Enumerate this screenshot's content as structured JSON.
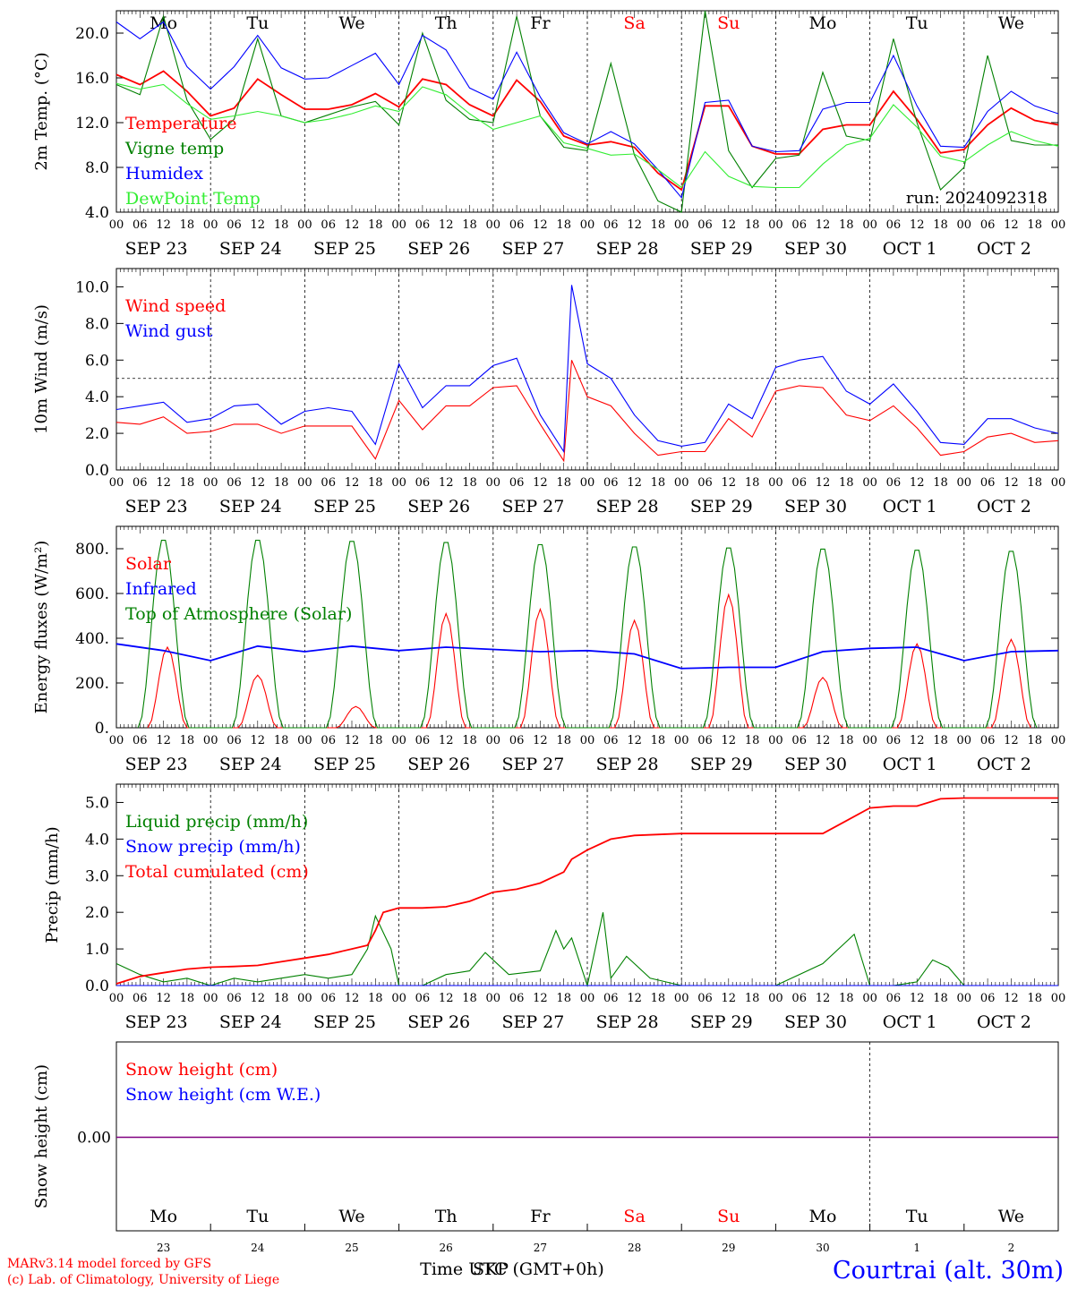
{
  "colors": {
    "red": "#ff0000",
    "green": "#008000",
    "blue": "#0000ff",
    "lime": "#33ee33",
    "purple": "#800080",
    "black": "#000000",
    "weekend": "#ff0000"
  },
  "x_axis": {
    "hour_ticks": [
      "00",
      "06",
      "12",
      "18"
    ],
    "final_tick": "00",
    "dates": [
      "SEP 23",
      "SEP 24",
      "SEP 25",
      "SEP 26",
      "SEP 27",
      "SEP 28",
      "SEP 29",
      "SEP 30",
      "OCT  1",
      "OCT  2"
    ],
    "weekdays": [
      "Mo",
      "Tu",
      "We",
      "Th",
      "Fr",
      "Sa",
      "Su",
      "Mo",
      "Tu",
      "We"
    ],
    "weekend_days": [
      "Sa",
      "Su"
    ],
    "day_numbers": [
      "23",
      "24",
      "25",
      "26",
      "27",
      "28",
      "29",
      "30",
      "1",
      "2"
    ],
    "time_label": "Time UTC (GMT+0h)",
    "time_label_overlay": "SKP"
  },
  "run_label": "run: 2024092318",
  "footer": {
    "model": "MARv3.14 model forced by GFS",
    "lab": "(c) Lab. of Climatology, University of Liege",
    "station": "Courtrai (alt. 30m)"
  },
  "chart_data": [
    {
      "type": "line",
      "id": "temp",
      "ylabel": "2m Temp. (°C)",
      "ylim": [
        4,
        22
      ],
      "yticks": [
        "4.0",
        "8.0",
        "12.0",
        "16.0",
        "20.0"
      ],
      "ytick_values": [
        4,
        8,
        12,
        16,
        20
      ],
      "series": [
        {
          "name": "Temperature",
          "color": "red",
          "x": [
            0,
            6,
            12,
            18,
            24,
            30,
            36,
            42,
            48,
            54,
            60,
            66,
            72,
            78,
            84,
            90,
            96,
            102,
            108,
            114,
            120,
            126,
            132,
            138,
            144,
            150,
            156,
            162,
            168,
            174,
            180,
            186,
            192,
            198,
            204,
            210,
            216,
            222,
            228,
            234,
            240
          ],
          "y": [
            16.3,
            15.4,
            16.6,
            14.8,
            12.6,
            13.3,
            15.9,
            14.5,
            13.2,
            13.2,
            13.6,
            14.6,
            13.4,
            15.9,
            15.4,
            13.6,
            12.6,
            15.8,
            13.9,
            10.8,
            10.0,
            10.3,
            9.8,
            7.5,
            6.0,
            13.5,
            13.5,
            9.9,
            9.2,
            9.2,
            11.4,
            11.8,
            11.8,
            14.8,
            12.3,
            9.3,
            9.6,
            11.8,
            13.3,
            12.2,
            11.8
          ]
        },
        {
          "name": "Vigne temp",
          "color": "green",
          "x": [
            0,
            6,
            12,
            18,
            24,
            30,
            36,
            42,
            48,
            54,
            60,
            66,
            72,
            78,
            84,
            90,
            96,
            102,
            108,
            114,
            120,
            126,
            132,
            138,
            144,
            150,
            156,
            162,
            168,
            174,
            180,
            186,
            192,
            198,
            204,
            210,
            216,
            222,
            228,
            234,
            240
          ],
          "y": [
            15.4,
            14.5,
            21.5,
            14.0,
            10.5,
            12.3,
            19.5,
            12.6,
            12.0,
            12.7,
            13.4,
            13.9,
            11.8,
            20.0,
            14.0,
            12.3,
            12.0,
            21.5,
            12.6,
            9.8,
            9.5,
            17.3,
            9.1,
            5.0,
            4.0,
            22.0,
            9.5,
            6.2,
            8.8,
            9.1,
            16.5,
            10.8,
            10.4,
            19.5,
            12.0,
            6.0,
            8.0,
            18.0,
            10.4,
            10.0,
            10.0
          ]
        },
        {
          "name": "Humidex",
          "color": "blue",
          "x": [
            0,
            6,
            12,
            18,
            24,
            30,
            36,
            42,
            48,
            54,
            60,
            66,
            72,
            78,
            84,
            90,
            96,
            102,
            108,
            114,
            120,
            126,
            132,
            138,
            144,
            150,
            156,
            162,
            168,
            174,
            180,
            186,
            192,
            198,
            204,
            210,
            216,
            222,
            228,
            234,
            240
          ],
          "y": [
            21.0,
            19.5,
            21.0,
            17.0,
            15.0,
            17.0,
            19.8,
            16.9,
            15.9,
            16.0,
            17.1,
            18.2,
            15.4,
            19.8,
            18.5,
            15.1,
            14.1,
            18.3,
            14.3,
            11.1,
            10.1,
            11.2,
            10.1,
            7.8,
            5.3,
            13.8,
            14.0,
            9.9,
            9.4,
            9.5,
            13.2,
            13.8,
            13.8,
            18.0,
            13.5,
            9.9,
            9.8,
            13.0,
            14.8,
            13.5,
            12.8
          ]
        },
        {
          "name": "DewPoint Temp",
          "color": "lime",
          "x": [
            0,
            6,
            12,
            18,
            24,
            30,
            36,
            42,
            48,
            54,
            60,
            66,
            72,
            78,
            84,
            90,
            96,
            102,
            108,
            114,
            120,
            126,
            132,
            138,
            144,
            150,
            156,
            162,
            168,
            174,
            180,
            186,
            192,
            198,
            204,
            210,
            216,
            222,
            228,
            234,
            240
          ],
          "y": [
            15.5,
            15.0,
            15.4,
            13.7,
            12.3,
            12.6,
            13.0,
            12.6,
            12.0,
            12.3,
            12.8,
            13.5,
            13.0,
            15.2,
            14.5,
            12.8,
            11.4,
            12.0,
            12.6,
            10.2,
            9.7,
            9.1,
            9.2,
            7.8,
            6.2,
            9.4,
            7.2,
            6.3,
            6.2,
            6.2,
            8.3,
            10.0,
            10.6,
            13.6,
            11.6,
            9.0,
            8.5,
            10.0,
            11.2,
            10.4,
            9.9
          ]
        }
      ]
    },
    {
      "type": "line",
      "id": "wind",
      "ylabel": "10m Wind (m/s)",
      "ylim": [
        0,
        11
      ],
      "yticks": [
        "0.0",
        "2.0",
        "4.0",
        "6.0",
        "8.0",
        "10.0"
      ],
      "ytick_values": [
        0,
        2,
        4,
        6,
        8,
        10
      ],
      "hline": 5,
      "series": [
        {
          "name": "Wind speed",
          "color": "red",
          "x": [
            0,
            6,
            12,
            18,
            24,
            30,
            36,
            42,
            48,
            54,
            60,
            66,
            72,
            78,
            84,
            90,
            96,
            102,
            108,
            114,
            116,
            120,
            126,
            132,
            138,
            144,
            150,
            156,
            162,
            168,
            174,
            180,
            186,
            192,
            198,
            204,
            210,
            216,
            222,
            228,
            234,
            240
          ],
          "y": [
            2.6,
            2.5,
            2.9,
            2.0,
            2.1,
            2.5,
            2.5,
            2.0,
            2.4,
            2.4,
            2.4,
            0.6,
            3.8,
            2.2,
            3.5,
            3.5,
            4.5,
            4.6,
            2.5,
            0.5,
            6.0,
            4.0,
            3.5,
            2.0,
            0.8,
            1.0,
            1.0,
            2.8,
            1.8,
            4.3,
            4.6,
            4.5,
            3.0,
            2.7,
            3.5,
            2.3,
            0.8,
            1.0,
            1.8,
            2.0,
            1.5,
            1.6
          ]
        },
        {
          "name": "Wind gust",
          "color": "blue",
          "x": [
            0,
            6,
            12,
            18,
            24,
            30,
            36,
            42,
            48,
            54,
            60,
            66,
            72,
            78,
            84,
            90,
            96,
            102,
            108,
            114,
            116,
            120,
            126,
            132,
            138,
            144,
            150,
            156,
            162,
            168,
            174,
            180,
            186,
            192,
            198,
            204,
            210,
            216,
            222,
            228,
            234,
            240
          ],
          "y": [
            3.3,
            3.5,
            3.7,
            2.6,
            2.8,
            3.5,
            3.6,
            2.5,
            3.2,
            3.4,
            3.2,
            1.4,
            5.8,
            3.4,
            4.6,
            4.6,
            5.7,
            6.1,
            3.0,
            1.0,
            10.1,
            5.8,
            5.0,
            3.0,
            1.6,
            1.3,
            1.5,
            3.6,
            2.8,
            5.6,
            6.0,
            6.2,
            4.3,
            3.6,
            4.7,
            3.2,
            1.5,
            1.4,
            2.8,
            2.8,
            2.3,
            2.0
          ]
        }
      ]
    },
    {
      "type": "line",
      "id": "energy",
      "ylabel": "Energy fluxes (W/m²)",
      "ylim": [
        0,
        900
      ],
      "yticks": [
        "0.",
        "200.",
        "400.",
        "600.",
        "800."
      ],
      "ytick_values": [
        0,
        200,
        400,
        600,
        800
      ],
      "series": [
        {
          "name": "Solar",
          "color": "red",
          "peak_hours": [
            13,
            12,
            13,
            12,
            12,
            12,
            12,
            12,
            12,
            12
          ],
          "peaks": [
            360,
            235,
            95,
            510,
            530,
            480,
            595,
            225,
            375,
            395
          ]
        },
        {
          "name": "Infrared",
          "color": "blue",
          "x": [
            0,
            12,
            24,
            36,
            48,
            60,
            72,
            84,
            96,
            108,
            120,
            132,
            144,
            156,
            168,
            180,
            192,
            204,
            216,
            228,
            240
          ],
          "y": [
            375,
            345,
            300,
            365,
            340,
            365,
            345,
            360,
            350,
            340,
            345,
            330,
            265,
            270,
            270,
            340,
            355,
            360,
            300,
            340,
            345
          ]
        },
        {
          "name": "Top of Atmosphere (Solar)",
          "color": "green",
          "peaks": [
            850,
            850,
            845,
            840,
            830,
            820,
            815,
            810,
            805,
            800
          ]
        }
      ]
    },
    {
      "type": "line",
      "id": "precip",
      "ylabel": "Precip (mm/h)",
      "ylim": [
        0,
        5.5
      ],
      "yticks": [
        "0.0",
        "1.0",
        "2.0",
        "3.0",
        "4.0",
        "5.0"
      ],
      "ytick_values": [
        0,
        1,
        2,
        3,
        4,
        5
      ],
      "series": [
        {
          "name": "Liquid precip (mm/h)",
          "color": "green",
          "x": [
            0,
            6,
            12,
            18,
            24,
            30,
            36,
            42,
            48,
            54,
            60,
            64,
            66,
            70,
            72,
            78,
            84,
            90,
            94,
            100,
            108,
            112,
            114,
            116,
            120,
            122,
            124,
            126,
            130,
            136,
            144,
            168,
            180,
            188,
            192,
            198,
            204,
            208,
            212,
            216,
            240
          ],
          "y": [
            0.6,
            0.3,
            0.1,
            0.2,
            0.0,
            0.2,
            0.1,
            0.2,
            0.3,
            0.2,
            0.3,
            1.0,
            1.9,
            1.0,
            0.0,
            0.0,
            0.3,
            0.4,
            0.9,
            0.3,
            0.4,
            1.5,
            1.0,
            1.3,
            0.0,
            1.0,
            2.0,
            0.2,
            0.8,
            0.2,
            0.0,
            0.0,
            0.6,
            1.4,
            0.0,
            0.0,
            0.1,
            0.7,
            0.5,
            0.0,
            0.0
          ]
        },
        {
          "name": "Snow precip (mm/h)",
          "color": "blue",
          "x": [
            0,
            240
          ],
          "y": [
            0,
            0
          ]
        },
        {
          "name": "Total cumulated (cm)",
          "color": "red",
          "x": [
            0,
            6,
            12,
            18,
            24,
            30,
            36,
            42,
            48,
            54,
            60,
            64,
            66,
            68,
            72,
            78,
            84,
            90,
            96,
            102,
            108,
            114,
            116,
            120,
            126,
            132,
            144,
            156,
            168,
            180,
            186,
            192,
            198,
            204,
            210,
            216,
            228,
            240
          ],
          "y": [
            0.05,
            0.25,
            0.35,
            0.45,
            0.5,
            0.52,
            0.55,
            0.65,
            0.75,
            0.85,
            1.0,
            1.1,
            1.5,
            2.0,
            2.12,
            2.12,
            2.15,
            2.3,
            2.55,
            2.63,
            2.8,
            3.1,
            3.45,
            3.7,
            4.0,
            4.1,
            4.15,
            4.15,
            4.15,
            4.15,
            4.5,
            4.85,
            4.9,
            4.9,
            5.1,
            5.12,
            5.12,
            5.12
          ]
        }
      ]
    },
    {
      "type": "line",
      "id": "snow",
      "ylabel": "Snow height (cm)",
      "yticks": [
        "0.00"
      ],
      "series": [
        {
          "name": "Snow height (cm)",
          "color": "red",
          "x": [
            0,
            240
          ],
          "y": [
            0,
            0
          ]
        },
        {
          "name": "Snow height (cm W.E.)",
          "color": "blue",
          "x": [
            0,
            240
          ],
          "y": [
            0,
            0
          ]
        }
      ]
    }
  ]
}
